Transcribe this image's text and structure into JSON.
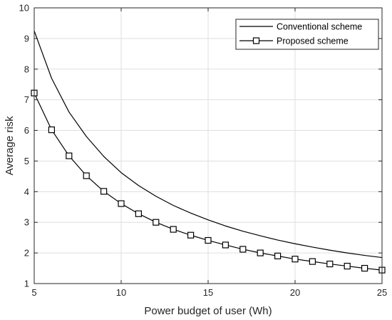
{
  "chart_data": {
    "type": "line",
    "xlabel": "Power budget of user (Wh)",
    "ylabel": "Average risk",
    "xlim": [
      5,
      25
    ],
    "ylim": [
      1,
      10
    ],
    "xticks": [
      5,
      10,
      15,
      20,
      25
    ],
    "yticks": [
      1,
      2,
      3,
      4,
      5,
      6,
      7,
      8,
      9,
      10
    ],
    "grid": true,
    "legend_position": "top-right",
    "x": [
      5,
      6,
      7,
      8,
      9,
      10,
      11,
      12,
      13,
      14,
      15,
      16,
      17,
      18,
      19,
      20,
      21,
      22,
      23,
      24,
      25
    ],
    "series": [
      {
        "name": "Conventional scheme",
        "color": "#000000",
        "marker": "none",
        "values": [
          9.25,
          7.7,
          6.6,
          5.8,
          5.15,
          4.62,
          4.2,
          3.85,
          3.55,
          3.3,
          3.08,
          2.88,
          2.71,
          2.56,
          2.42,
          2.3,
          2.19,
          2.09,
          2.0,
          1.92,
          1.85
        ]
      },
      {
        "name": "Proposed scheme",
        "color": "#000000",
        "marker": "square",
        "values": [
          7.22,
          6.02,
          5.17,
          4.52,
          4.01,
          3.61,
          3.28,
          3.0,
          2.77,
          2.58,
          2.41,
          2.26,
          2.12,
          2.0,
          1.9,
          1.8,
          1.72,
          1.64,
          1.57,
          1.5,
          1.44
        ]
      }
    ]
  }
}
